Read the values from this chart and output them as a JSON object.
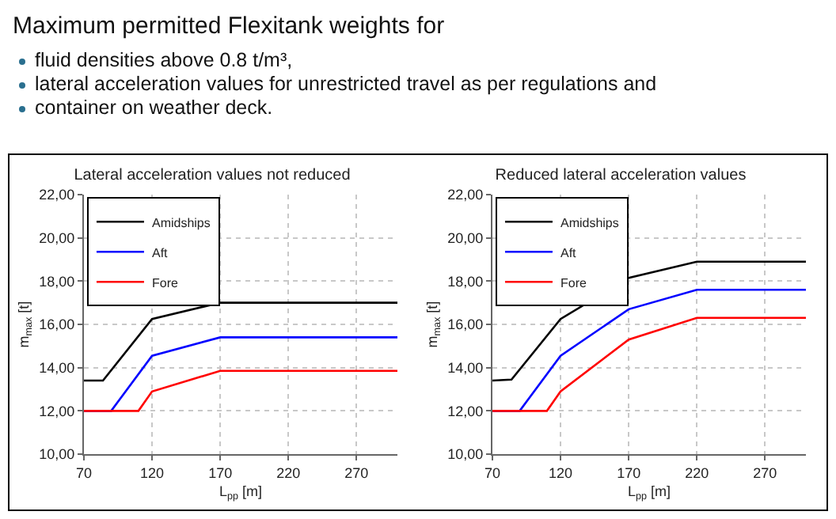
{
  "chart_data": [
    {
      "type": "other",
      "title": "Maximum permitted Flexitank weights for",
      "annotations": [
        "fluid densities above 0.8 t/m³,",
        "lateral acceleration values for unrestricted travel as per regulations and",
        "container on weather deck."
      ]
    },
    {
      "type": "line",
      "title": "Lateral acceleration values not reduced",
      "xlabel": "L$_{pp}$ [m]",
      "ylabel": "m$_{max}$ [t]",
      "xlim": [
        70,
        300
      ],
      "xticks": [
        70,
        120,
        170,
        220,
        270
      ],
      "ylim": [
        10,
        22
      ],
      "yticks": [
        {
          "value": 10,
          "label": "10,00"
        },
        {
          "value": 12,
          "label": "12,00"
        },
        {
          "value": 14,
          "label": "14,00"
        },
        {
          "value": 16,
          "label": "16,00"
        },
        {
          "value": 18,
          "label": "18,00"
        },
        {
          "value": 20,
          "label": "20,00"
        },
        {
          "value": 22,
          "label": "22,00"
        }
      ],
      "grid": true,
      "legend": "top left",
      "series": [
        {
          "name": "Amidships",
          "color": "#000000",
          "x": [
            70,
            84,
            120,
            170,
            300
          ],
          "values": [
            13.4,
            13.4,
            16.25,
            17.0,
            17.0
          ]
        },
        {
          "name": "Aft",
          "color": "#0000ff",
          "x": [
            70,
            90,
            120,
            170,
            300
          ],
          "values": [
            12.0,
            12.0,
            14.55,
            15.4,
            15.4
          ]
        },
        {
          "name": "Fore",
          "color": "#ff0000",
          "x": [
            70,
            110,
            120,
            170,
            300
          ],
          "values": [
            12.0,
            12.0,
            12.9,
            13.85,
            13.85
          ]
        }
      ]
    },
    {
      "type": "line",
      "title": "Reduced lateral acceleration values",
      "xlabel": "L$_{pp}$ [m]",
      "ylabel": "m$_{max}$ [t]",
      "xlim": [
        70,
        300
      ],
      "xticks": [
        70,
        120,
        170,
        220,
        270
      ],
      "ylim": [
        10,
        22
      ],
      "yticks": [
        {
          "value": 10,
          "label": "10,00"
        },
        {
          "value": 12,
          "label": "12,00"
        },
        {
          "value": 14,
          "label": "14,00"
        },
        {
          "value": 16,
          "label": "16,00"
        },
        {
          "value": 18,
          "label": "18,00"
        },
        {
          "value": 20,
          "label": "20,00"
        },
        {
          "value": 22,
          "label": "22,00"
        }
      ],
      "grid": true,
      "legend": "top left",
      "series": [
        {
          "name": "Amidships",
          "color": "#000000",
          "x": [
            70,
            84,
            120,
            170,
            220,
            300
          ],
          "values": [
            13.4,
            13.45,
            16.25,
            18.15,
            18.9,
            18.9
          ]
        },
        {
          "name": "Aft",
          "color": "#0000ff",
          "x": [
            70,
            90,
            120,
            170,
            220,
            300
          ],
          "values": [
            12.0,
            12.0,
            14.55,
            16.7,
            17.6,
            17.6
          ]
        },
        {
          "name": "Fore",
          "color": "#ff0000",
          "x": [
            70,
            110,
            120,
            170,
            220,
            300
          ],
          "values": [
            12.0,
            12.0,
            12.9,
            15.3,
            16.3,
            16.3
          ]
        }
      ]
    }
  ]
}
